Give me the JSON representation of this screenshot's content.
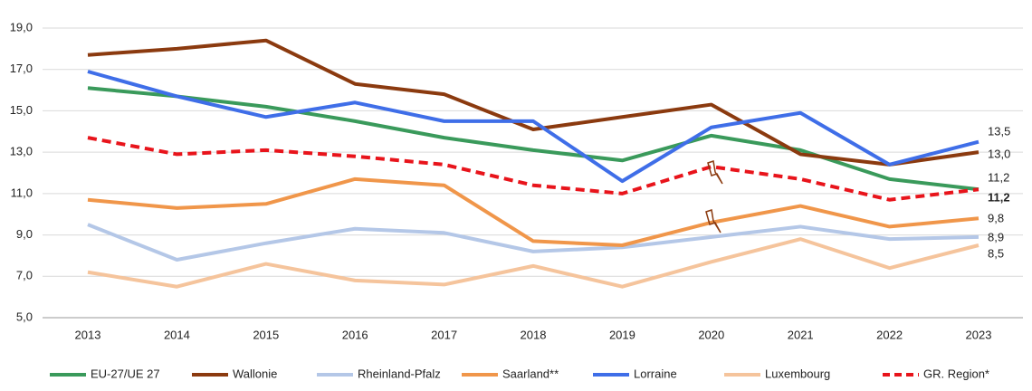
{
  "chart_data": {
    "type": "line",
    "categories": [
      "2013",
      "2014",
      "2015",
      "2016",
      "2017",
      "2018",
      "2019",
      "2020",
      "2021",
      "2022",
      "2023"
    ],
    "ylim": [
      5,
      19
    ],
    "yticks": [
      {
        "value": 5,
        "label": "5,0"
      },
      {
        "value": 7,
        "label": "7,0"
      },
      {
        "value": 9,
        "label": "9,0"
      },
      {
        "value": 11,
        "label": "11,0"
      },
      {
        "value": 13,
        "label": "13,0"
      },
      {
        "value": 15,
        "label": "15,0"
      },
      {
        "value": 17,
        "label": "17,0"
      },
      {
        "value": 19,
        "label": "19,0"
      }
    ],
    "grid": true,
    "legend": "bottom",
    "series": [
      {
        "name": "EU-27/UE 27",
        "color": "#3a9a5b",
        "values": [
          16.1,
          15.7,
          15.2,
          14.5,
          13.7,
          13.1,
          12.6,
          13.8,
          13.1,
          11.7,
          11.2
        ],
        "value_labels": [
          null,
          null,
          null,
          null,
          null,
          null,
          null,
          null,
          null,
          null,
          "11,2"
        ]
      },
      {
        "name": "Wallonie",
        "color": "#8b3a0f",
        "values": [
          17.7,
          18.0,
          18.4,
          16.3,
          15.8,
          14.1,
          14.7,
          15.3,
          12.9,
          12.4,
          13.0
        ],
        "value_labels": [
          null,
          null,
          null,
          null,
          null,
          null,
          null,
          null,
          null,
          null,
          "13,0"
        ]
      },
      {
        "name": "Rheinland-Pfalz",
        "color": "#b4c7e7",
        "values": [
          9.5,
          7.8,
          8.6,
          9.3,
          9.1,
          8.2,
          8.4,
          8.9,
          9.4,
          8.8,
          8.9
        ],
        "value_labels": [
          null,
          null,
          null,
          null,
          null,
          null,
          null,
          null,
          null,
          null,
          "8,9"
        ]
      },
      {
        "name": "Saarland**",
        "color": "#f0964a",
        "values": [
          10.7,
          10.3,
          10.5,
          11.7,
          11.4,
          8.7,
          8.5,
          9.6,
          10.4,
          9.4,
          9.8
        ],
        "value_labels": [
          null,
          null,
          null,
          null,
          null,
          null,
          null,
          null,
          null,
          null,
          "9,8"
        ]
      },
      {
        "name": "Lorraine",
        "color": "#3f6ee8",
        "values": [
          16.9,
          15.7,
          14.7,
          15.4,
          14.5,
          14.5,
          11.6,
          14.2,
          14.9,
          12.4,
          13.5
        ],
        "value_labels": [
          null,
          null,
          null,
          null,
          null,
          null,
          null,
          null,
          null,
          null,
          "13,5"
        ]
      },
      {
        "name": "Luxembourg",
        "color": "#f5c49c",
        "values": [
          7.2,
          6.5,
          7.6,
          6.8,
          6.6,
          7.5,
          6.5,
          7.7,
          8.8,
          7.4,
          8.5
        ],
        "value_labels": [
          null,
          null,
          null,
          null,
          null,
          null,
          null,
          null,
          null,
          null,
          "8,5"
        ]
      },
      {
        "name": "GR. Region*",
        "color": "#e8141b",
        "dashed": true,
        "values": [
          13.7,
          12.9,
          13.1,
          12.8,
          12.4,
          11.4,
          11.0,
          12.3,
          11.7,
          10.7,
          11.2
        ],
        "value_labels": [
          null,
          null,
          null,
          null,
          null,
          null,
          null,
          null,
          null,
          null,
          "11,2"
        ]
      }
    ]
  }
}
